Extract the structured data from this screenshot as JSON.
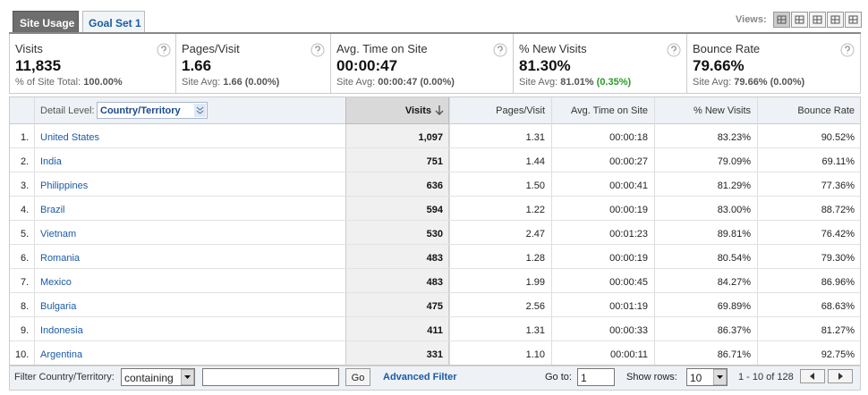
{
  "tabs": [
    "Site Usage",
    "Goal Set 1"
  ],
  "views_label": "Views:",
  "summary": [
    {
      "label": "Visits",
      "value": "11,835",
      "sub_label": "% of Site Total:",
      "sub_value": "100.00%"
    },
    {
      "label": "Pages/Visit",
      "value": "1.66",
      "sub_label": "Site Avg:",
      "sub_value": "1.66 (0.00%)"
    },
    {
      "label": "Avg. Time on Site",
      "value": "00:00:47",
      "sub_label": "Site Avg:",
      "sub_value": "00:00:47 (0.00%)"
    },
    {
      "label": "% New Visits",
      "value": "81.30%",
      "sub_label": "Site Avg:",
      "sub_value": "81.01%",
      "sub_change": "(0.35%)"
    },
    {
      "label": "Bounce Rate",
      "value": "79.66%",
      "sub_label": "Site Avg:",
      "sub_value": "79.66% (0.00%)"
    }
  ],
  "table": {
    "detail_label": "Detail Level:",
    "detail_value": "Country/Territory",
    "headers": [
      "Visits",
      "Pages/Visit",
      "Avg. Time on Site",
      "% New Visits",
      "Bounce Rate"
    ],
    "rows": [
      [
        "1.",
        "United States",
        "1,097",
        "1.31",
        "00:00:18",
        "83.23%",
        "90.52%"
      ],
      [
        "2.",
        "India",
        "751",
        "1.44",
        "00:00:27",
        "79.09%",
        "69.11%"
      ],
      [
        "3.",
        "Philippines",
        "636",
        "1.50",
        "00:00:41",
        "81.29%",
        "77.36%"
      ],
      [
        "4.",
        "Brazil",
        "594",
        "1.22",
        "00:00:19",
        "83.00%",
        "88.72%"
      ],
      [
        "5.",
        "Vietnam",
        "530",
        "2.47",
        "00:01:23",
        "89.81%",
        "76.42%"
      ],
      [
        "6.",
        "Romania",
        "483",
        "1.28",
        "00:00:19",
        "80.54%",
        "79.30%"
      ],
      [
        "7.",
        "Mexico",
        "483",
        "1.99",
        "00:00:45",
        "84.27%",
        "86.96%"
      ],
      [
        "8.",
        "Bulgaria",
        "475",
        "2.56",
        "00:01:19",
        "69.89%",
        "68.63%"
      ],
      [
        "9.",
        "Indonesia",
        "411",
        "1.31",
        "00:00:33",
        "86.37%",
        "81.27%"
      ],
      [
        "10.",
        "Argentina",
        "331",
        "1.10",
        "00:00:11",
        "86.71%",
        "92.75%"
      ]
    ]
  },
  "footer": {
    "filter_label": "Filter Country/Territory:",
    "filter_mode": "containing",
    "go_button": "Go",
    "advanced_filter": "Advanced Filter",
    "goto_label": "Go to:",
    "goto_value": "1",
    "show_rows_label": "Show rows:",
    "show_rows_value": "10",
    "range": "1 - 10 of 128"
  }
}
